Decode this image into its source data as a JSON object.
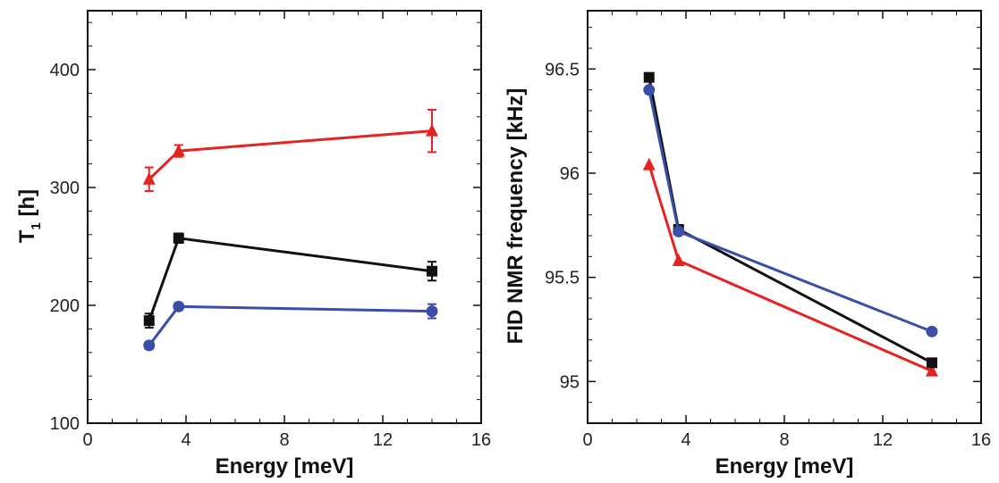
{
  "chart_data": [
    {
      "type": "line",
      "xlabel": "Energy [meV]",
      "ylabel": {
        "main": "T",
        "subscript": "1",
        "rest": " [h]"
      },
      "xlim": [
        0,
        16
      ],
      "ylim": [
        100,
        450
      ],
      "xticks": [
        0,
        4,
        8,
        12,
        16
      ],
      "xtick_labels": [
        "0",
        "4",
        "8",
        "12",
        "16"
      ],
      "yticks": [
        100,
        200,
        300,
        400
      ],
      "ytick_labels": [
        "100",
        "200",
        "300",
        "400"
      ],
      "grid": false,
      "series": [
        {
          "color": "#e52421",
          "marker": "triangle",
          "points": [
            {
              "x": 2.5,
              "y": 307,
              "err": 10
            },
            {
              "x": 3.7,
              "y": 331,
              "err": 5
            },
            {
              "x": 14,
              "y": 348,
              "err": 18
            }
          ]
        },
        {
          "color": "#111111",
          "marker": "square",
          "points": [
            {
              "x": 2.5,
              "y": 187,
              "err": 6
            },
            {
              "x": 3.7,
              "y": 257,
              "err": 4
            },
            {
              "x": 14,
              "y": 229,
              "err": 8
            }
          ]
        },
        {
          "color": "#3a4ea8",
          "marker": "circle",
          "points": [
            {
              "x": 2.5,
              "y": 166,
              "err": 3
            },
            {
              "x": 3.7,
              "y": 199,
              "err": 3
            },
            {
              "x": 14,
              "y": 195,
              "err": 6
            }
          ]
        }
      ]
    },
    {
      "type": "line",
      "xlabel": "Energy [meV]",
      "ylabel": "FID NMR frequency [kHz]",
      "xlim": [
        0,
        16
      ],
      "ylim": [
        94.8,
        96.78
      ],
      "xticks": [
        0,
        4,
        8,
        12,
        16
      ],
      "xtick_labels": [
        "0",
        "4",
        "8",
        "12",
        "16"
      ],
      "yticks": [
        95,
        95.5,
        96,
        96.5
      ],
      "ytick_labels": [
        "95",
        "95.5",
        "96",
        "96.5"
      ],
      "grid": false,
      "series": [
        {
          "color": "#e52421",
          "marker": "triangle",
          "points": [
            {
              "x": 2.5,
              "y": 96.04
            },
            {
              "x": 3.7,
              "y": 95.58
            },
            {
              "x": 14,
              "y": 95.05
            }
          ]
        },
        {
          "color": "#111111",
          "marker": "square",
          "points": [
            {
              "x": 2.5,
              "y": 96.46
            },
            {
              "x": 3.7,
              "y": 95.73
            },
            {
              "x": 14,
              "y": 95.09
            }
          ]
        },
        {
          "color": "#3a4ea8",
          "marker": "circle",
          "points": [
            {
              "x": 2.5,
              "y": 96.4
            },
            {
              "x": 3.7,
              "y": 95.72
            },
            {
              "x": 14,
              "y": 95.24
            }
          ]
        }
      ]
    }
  ]
}
